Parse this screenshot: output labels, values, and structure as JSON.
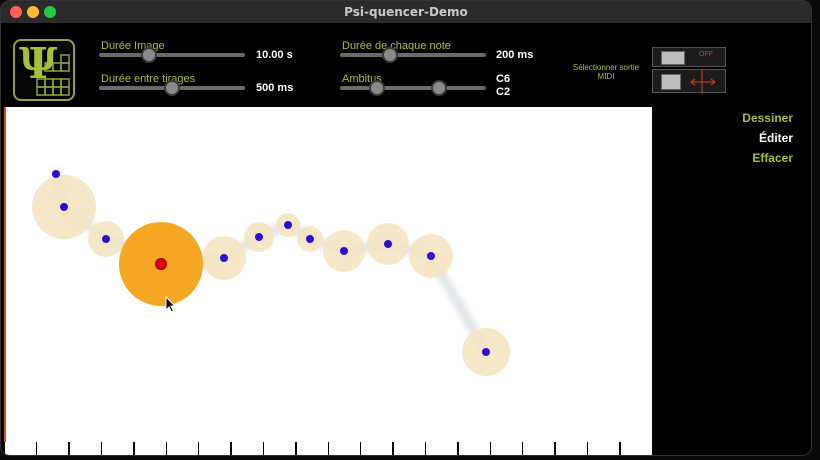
{
  "window": {
    "title": "Psi-quencer-Demo"
  },
  "logo": {
    "glyph": "Ψ"
  },
  "controls": {
    "image_duration": {
      "label": "Durée Image",
      "value": "10.00 s",
      "level": 0.34
    },
    "draw_interval": {
      "label": "Durée entre tirages",
      "value": "500 ms",
      "level": 0.5
    },
    "note_duration": {
      "label": "Durée de chaque note",
      "value": "200 ms",
      "level": 0.34
    },
    "range": {
      "label": "Ambitus",
      "high": "C6",
      "low": "C2",
      "low_level": 0.25,
      "high_level": 0.68
    }
  },
  "midi": {
    "label": "Sélectionner sortie MIDI",
    "toggle_state": "OFF"
  },
  "menu": {
    "draw": "Dessiner",
    "edit": "Éditer",
    "erase": "Effacer"
  },
  "colors": {
    "accent": "#a8bf3c",
    "active_menu": "#ffffff",
    "node_fill": "#f5e3c0",
    "selected_node": "#f5a623",
    "dot": "#2a10d6",
    "selected_dot": "#e00000"
  }
}
